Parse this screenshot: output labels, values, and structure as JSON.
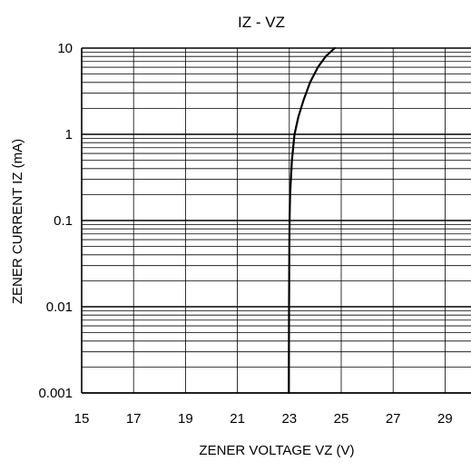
{
  "chart_data": {
    "type": "line",
    "title": "IZ - VZ",
    "xlabel": "ZENER VOLTAGE  VZ (V)",
    "ylabel": "ZENER CURRENT  IZ (mA)",
    "xlim": [
      15,
      30
    ],
    "ylim": [
      0.001,
      10
    ],
    "yscale": "log",
    "grid": true,
    "x_tick_labels": [
      "15",
      "17",
      "19",
      "21",
      "23",
      "25",
      "27",
      "29"
    ],
    "x_tick_values": [
      15,
      17,
      19,
      21,
      23,
      25,
      27,
      29
    ],
    "y_tick_labels": [
      "10",
      "1",
      "0.1",
      "0.01",
      "0.001"
    ],
    "y_tick_values": [
      10,
      1,
      0.1,
      0.01,
      0.001
    ],
    "series": [
      {
        "x": [
          22.98,
          22.99,
          23.0,
          23.01,
          23.03,
          23.06,
          23.1,
          23.2,
          23.35,
          23.55,
          23.8,
          24.1,
          24.4,
          24.75
        ],
        "y": [
          0.001,
          0.01,
          0.05,
          0.1,
          0.2,
          0.3,
          0.5,
          1,
          1.6,
          2.5,
          4,
          6,
          8,
          10
        ],
        "color": "#000000"
      }
    ]
  }
}
